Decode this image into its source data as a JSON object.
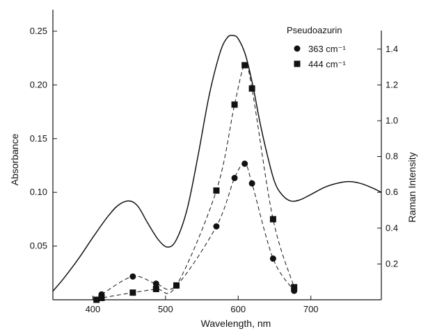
{
  "chart_data": {
    "type": "line",
    "title": "",
    "legend_title": "Pseudoazurin",
    "xlabel": "Wavelength, nm",
    "ylabel_left": "Absorbance",
    "ylabel_right": "Raman Intensity",
    "xlim": [
      345,
      797
    ],
    "ylim_left": [
      0,
      0.27
    ],
    "ylim_right": [
      0,
      1.62
    ],
    "x_ticks": [
      400,
      500,
      600,
      700
    ],
    "x_tick_labels": [
      "400",
      "500",
      "600",
      "700"
    ],
    "y_left_ticks": [
      0.05,
      0.1,
      0.15,
      0.2,
      0.25
    ],
    "y_left_tick_labels": [
      "0.05",
      "0.10",
      "0.15",
      "0.20",
      "0.25"
    ],
    "y_right_ticks": [
      0.2,
      0.4,
      0.6,
      0.8,
      1.0,
      1.2,
      1.4
    ],
    "y_right_tick_labels": [
      "0.2",
      "0.4",
      "0.6",
      "0.8",
      "1.0",
      "1.2",
      "1.4"
    ],
    "legend_position": "top-right",
    "grid": false,
    "absorbance": {
      "axis": "left",
      "style": "solid",
      "x": [
        345,
        360,
        380,
        400,
        420,
        435,
        450,
        462,
        475,
        490,
        503,
        515,
        530,
        545,
        560,
        575,
        585,
        593,
        600,
        610,
        620,
        630,
        640,
        650,
        660,
        672,
        685,
        700,
        720,
        740,
        755,
        770,
        785,
        797
      ],
      "y": [
        0.008,
        0.02,
        0.038,
        0.058,
        0.077,
        0.088,
        0.092,
        0.087,
        0.072,
        0.056,
        0.049,
        0.056,
        0.085,
        0.135,
        0.19,
        0.23,
        0.244,
        0.246,
        0.243,
        0.228,
        0.2,
        0.165,
        0.135,
        0.11,
        0.098,
        0.092,
        0.093,
        0.098,
        0.105,
        0.109,
        0.11,
        0.108,
        0.104,
        0.1
      ]
    },
    "series": [
      {
        "name": "363 cm⁻¹",
        "marker": "circle",
        "axis": "right",
        "x": [
          412,
          455,
          487,
          515,
          570,
          595,
          609,
          619,
          648,
          677
        ],
        "y": [
          0.03,
          0.13,
          0.09,
          0.08,
          0.41,
          0.68,
          0.76,
          0.65,
          0.23,
          0.05
        ]
      },
      {
        "name": "444 cm⁻¹",
        "marker": "square",
        "axis": "right",
        "x": [
          405,
          412,
          455,
          487,
          515,
          570,
          595,
          609,
          619,
          648,
          677
        ],
        "y": [
          0.0,
          0.01,
          0.04,
          0.06,
          0.08,
          0.61,
          1.09,
          1.31,
          1.18,
          0.45,
          0.07
        ]
      }
    ]
  }
}
